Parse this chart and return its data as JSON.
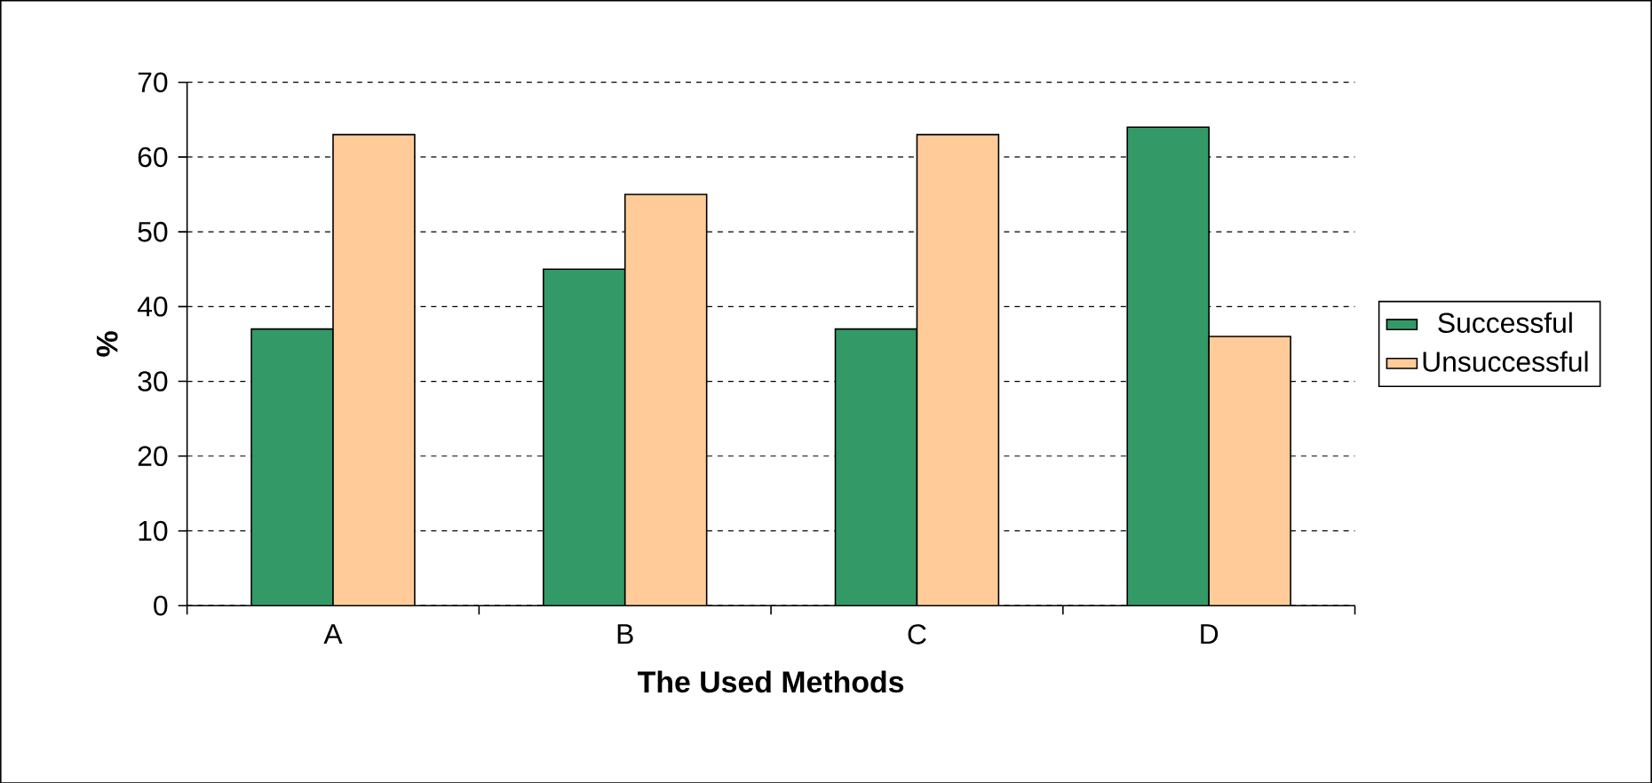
{
  "chart_data": {
    "type": "bar",
    "xlabel": "The Used Methods",
    "ylabel": "%",
    "categories": [
      "A",
      "B",
      "C",
      "D"
    ],
    "series": [
      {
        "name": "Successful",
        "color": "#339966",
        "values": [
          37,
          45,
          37,
          64
        ]
      },
      {
        "name": "Unsuccessful",
        "color": "#ffcc99",
        "values": [
          63,
          55,
          63,
          36
        ]
      }
    ],
    "ylim": [
      0,
      70
    ],
    "yticks": [
      0,
      10,
      20,
      30,
      40,
      50,
      60,
      70
    ],
    "grid": "y",
    "legend": "right"
  }
}
